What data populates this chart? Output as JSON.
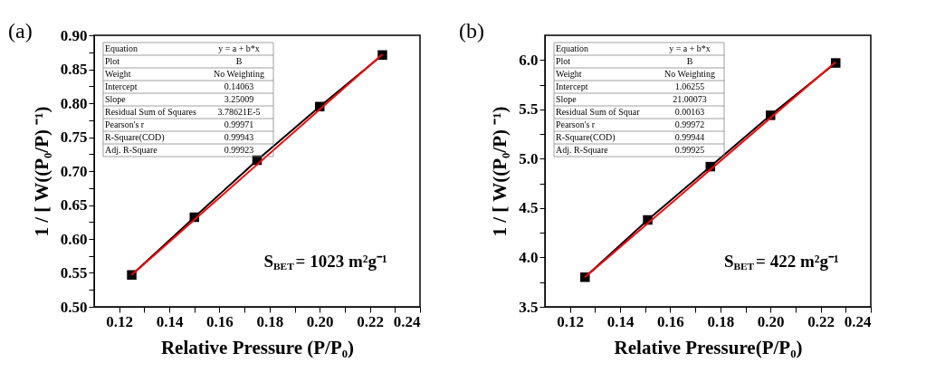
{
  "chart_data": [
    {
      "type": "line",
      "xlabel": "Relative Pressure (P/P₀)",
      "ylabel": "1 / [ W((P₀/P) ⁻¹)",
      "xlim": [
        0.11,
        0.24
      ],
      "ylim": [
        0.5,
        0.9
      ],
      "xticks": [
        0.12,
        {
          "value": 0.13,
          "label": null
        },
        0.14,
        {
          "value": 0.15,
          "label": null
        },
        0.16,
        {
          "value": 0.17,
          "label": null
        },
        0.18,
        {
          "value": 0.19,
          "label": null
        },
        {
          "value": 0.2,
          "label": "0.20"
        },
        {
          "value": 0.21,
          "label": null
        },
        0.22,
        {
          "value": 0.23,
          "label": null
        },
        0.24
      ],
      "yticks": [
        {
          "value": 0.5,
          "label": "0.50"
        },
        {
          "value": 0.525,
          "label": null
        },
        0.55,
        {
          "value": 0.575,
          "label": null
        },
        {
          "value": 0.6,
          "label": "0.60"
        },
        {
          "value": 0.625,
          "label": null
        },
        0.65,
        {
          "value": 0.675,
          "label": null
        },
        {
          "value": 0.7,
          "label": "0.70"
        },
        {
          "value": 0.725,
          "label": null
        },
        0.75,
        {
          "value": 0.775,
          "label": null
        },
        {
          "value": 0.8,
          "label": "0.80"
        },
        {
          "value": 0.825,
          "label": null
        },
        0.85,
        {
          "value": 0.875,
          "label": null
        },
        {
          "value": 0.9,
          "label": "0.90"
        }
      ],
      "grid": false,
      "series": [
        {
          "color": "#000000",
          "marker": "square",
          "x": [
            0.125,
            0.15,
            0.175,
            0.2,
            0.225
          ],
          "values": [
            0.547,
            0.632,
            0.716,
            0.795,
            0.871
          ]
        },
        {
          "color": "#ff0000",
          "marker": "none",
          "x": [
            0.125,
            0.225
          ],
          "values": [
            0.547,
            0.872
          ]
        }
      ],
      "annotations": [
        "(a)",
        "Equation",
        "y = a + b*x",
        "Plot",
        "B",
        "Weight",
        "No Weighting",
        "Intercept",
        "0.14063",
        "Slope",
        "3.25009",
        "Residual Sum of Squares",
        "3.78621E-5",
        "Pearson's r",
        "0.99971",
        "R-Square(COD)",
        "0.99943",
        "Adj. R-Square",
        "0.99923",
        "S$_{BET}$= 1023 m²g⁻¹"
      ]
    },
    {
      "type": "line",
      "xlabel": "Relative Pressure(P/P₀)",
      "ylabel": "1 / [ W((P₀/P) ⁻¹)",
      "xlim": [
        0.11,
        0.24
      ],
      "ylim": [
        3.5,
        6.25
      ],
      "xticks": [
        0.12,
        {
          "value": 0.13,
          "label": null
        },
        0.14,
        {
          "value": 0.15,
          "label": null
        },
        0.16,
        {
          "value": 0.17,
          "label": null
        },
        0.18,
        {
          "value": 0.19,
          "label": null
        },
        {
          "value": 0.2,
          "label": "0.20"
        },
        {
          "value": 0.21,
          "label": null
        },
        0.22,
        {
          "value": 0.23,
          "label": null
        },
        0.24
      ],
      "yticks": [
        3.5,
        {
          "value": 3.75,
          "label": null
        },
        {
          "value": 4.0,
          "label": "4.0"
        },
        {
          "value": 4.25,
          "label": null
        },
        4.5,
        {
          "value": 4.75,
          "label": null
        },
        {
          "value": 5.0,
          "label": "5.0"
        },
        {
          "value": 5.25,
          "label": null
        },
        5.5,
        {
          "value": 5.75,
          "label": null
        },
        {
          "value": 6.0,
          "label": "6.0"
        }
      ],
      "grid": false,
      "series": [
        {
          "color": "#000000",
          "marker": "square",
          "x": [
            0.126,
            0.151,
            0.176,
            0.2,
            0.226
          ],
          "values": [
            3.8,
            4.38,
            4.92,
            5.44,
            5.97
          ]
        },
        {
          "color": "#ff0000",
          "marker": "none",
          "x": [
            0.126,
            0.226
          ],
          "values": [
            3.8,
            5.98
          ]
        }
      ],
      "annotations": [
        "(b)",
        "Equation",
        "y = a + b*x",
        "Plot",
        "B",
        "Weight",
        "No Weighting",
        "Intercept",
        "1.06255",
        "Slope",
        "21.00073",
        "Residual Sum of Squar",
        "0.00163",
        "Pearson's r",
        "0.99972",
        "R-Square(COD)",
        "0.99944",
        "Adj. R-Square",
        "0.99925",
        "S$_{BET}$= 422 m²g⁻¹"
      ]
    }
  ]
}
